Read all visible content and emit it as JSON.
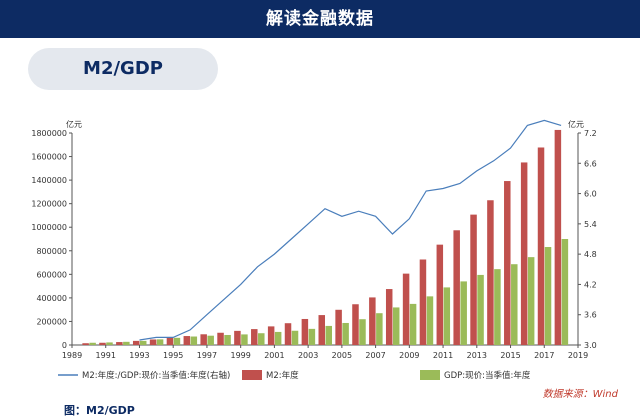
{
  "header": {
    "title": "解读金融数据"
  },
  "section": {
    "title": "M2/GDP"
  },
  "source": "数据来源：Wind",
  "caption": "图：M2/GDP",
  "colors": {
    "header_bg": "#0d2b63",
    "m2": "#c0504d",
    "gdp": "#9bbb59",
    "ratio": "#4a7ebb"
  },
  "chart_data": {
    "type": "bar",
    "x": [
      1990,
      1991,
      1992,
      1993,
      1994,
      1995,
      1996,
      1997,
      1998,
      1999,
      2000,
      2001,
      2002,
      2003,
      2004,
      2005,
      2006,
      2007,
      2008,
      2009,
      2010,
      2011,
      2012,
      2013,
      2014,
      2015,
      2016,
      2017,
      2018
    ],
    "x_ticks": [
      "1989",
      "1991",
      "1993",
      "1995",
      "1997",
      "1999",
      "2001",
      "2003",
      "2005",
      "2007",
      "2009",
      "2011",
      "2013",
      "2015",
      "2017",
      "2019"
    ],
    "y_left_unit": "亿元",
    "y_right_unit": "亿元",
    "y_left_ticks": [
      "0",
      "200000",
      "400000",
      "600000",
      "800000",
      "1000000",
      "1200000",
      "1400000",
      "1600000",
      "1800000"
    ],
    "y_right_ticks": [
      "3.0",
      "3.6",
      "4.2",
      "4.8",
      "5.4",
      "6.0",
      "6.6",
      "7.2"
    ],
    "ylim_left": [
      0,
      1800000
    ],
    "ylim_right": [
      3.0,
      7.2
    ],
    "series": [
      {
        "name": "M2:年度:/GDP:现价:当季值:年度(右轴)",
        "kind": "line",
        "axis": "right",
        "values": [
          null,
          null,
          null,
          3.1,
          3.15,
          3.15,
          3.3,
          3.6,
          3.9,
          4.2,
          4.55,
          4.8,
          5.1,
          5.4,
          5.7,
          5.55,
          5.65,
          5.55,
          5.2,
          5.5,
          6.05,
          6.1,
          6.2,
          6.45,
          6.65,
          6.9,
          7.35,
          7.45,
          7.35
        ]
      },
      {
        "name": "M2:年度",
        "kind": "bar",
        "axis": "left",
        "values": [
          15000,
          19000,
          25000,
          35000,
          47000,
          61000,
          76000,
          91000,
          104000,
          120000,
          135000,
          158000,
          185000,
          221000,
          254000,
          299000,
          346000,
          404000,
          475000,
          606000,
          726000,
          852000,
          974000,
          1107000,
          1229000,
          1392000,
          1550000,
          1677000,
          1826000
        ]
      },
      {
        "name": "GDP:现价:当季值:年度",
        "kind": "bar",
        "axis": "left",
        "values": [
          19000,
          22000,
          27000,
          35000,
          48000,
          61000,
          72000,
          79000,
          85000,
          90000,
          100000,
          111000,
          121000,
          137000,
          162000,
          187000,
          219000,
          270000,
          319000,
          349000,
          413000,
          489000,
          540000,
          595000,
          644000,
          686000,
          746000,
          832000,
          900000
        ]
      }
    ],
    "legend_placement": "bottom",
    "grid": false
  }
}
